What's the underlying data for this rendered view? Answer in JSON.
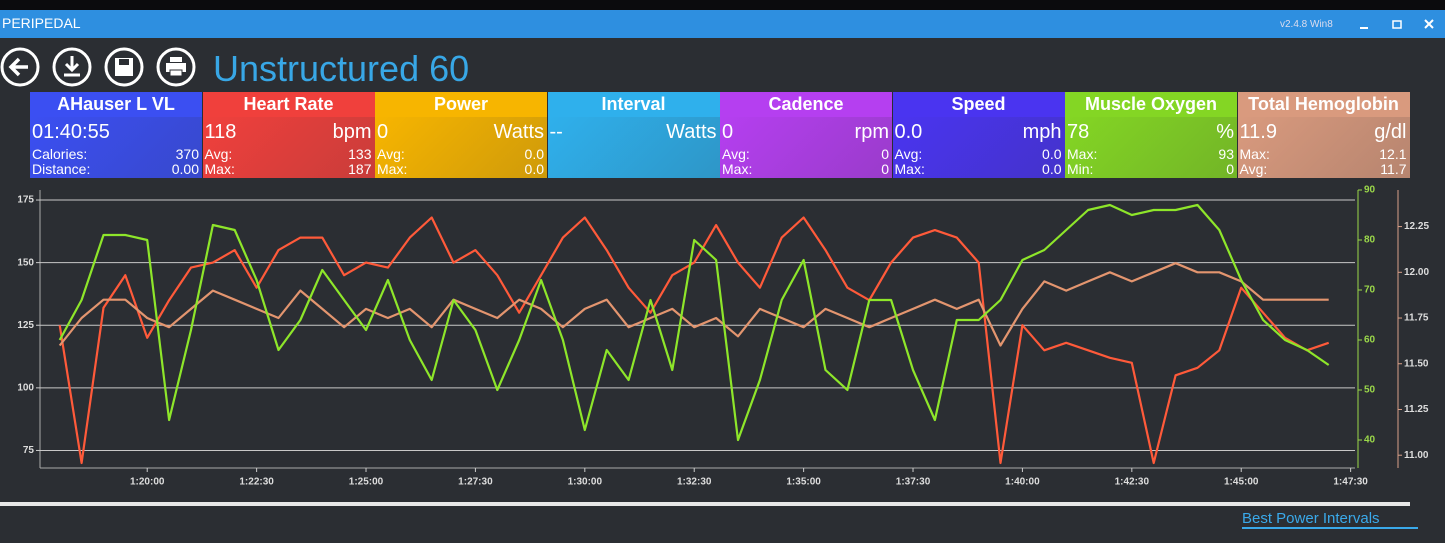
{
  "app": {
    "name": "PERIPEDAL",
    "version": "v2.4.8 Win8"
  },
  "header": {
    "title": "Unstructured 60"
  },
  "tiles": [
    {
      "title": "AHauser L VL",
      "value": "01:40:55",
      "rows": [
        [
          "Calories:",
          "370"
        ],
        [
          "Distance:",
          "0.00"
        ]
      ],
      "color": "#3b4ff2"
    },
    {
      "title": "Heart Rate",
      "value": "118",
      "unit": "bpm",
      "rows": [
        [
          "Avg:",
          "133"
        ],
        [
          "Max:",
          "187"
        ]
      ],
      "color": "#f0403c"
    },
    {
      "title": "Power",
      "value": "0",
      "unit": "Watts",
      "rows": [
        [
          "Avg:",
          "0.0"
        ],
        [
          "Max:",
          "0.0"
        ]
      ],
      "color": "#f7b500"
    },
    {
      "title": "Interval",
      "value": "--",
      "unit": "Watts",
      "rows": [],
      "color": "#2fb0ec"
    },
    {
      "title": "Cadence",
      "value": "0",
      "unit": "rpm",
      "rows": [
        [
          "Avg:",
          "0"
        ],
        [
          "Max:",
          "0"
        ]
      ],
      "color": "#b53ff0"
    },
    {
      "title": "Speed",
      "value": "0.0",
      "unit": "mph",
      "rows": [
        [
          "Avg:",
          "0.0"
        ],
        [
          "Max:",
          "0.0"
        ]
      ],
      "color": "#4a34f0"
    },
    {
      "title": "Muscle Oxygen",
      "value": "78",
      "unit": "%",
      "rows": [
        [
          "Max:",
          "93"
        ],
        [
          "Min:",
          "0"
        ]
      ],
      "color": "#84d624"
    },
    {
      "title": "Total Hemoglobin",
      "value": "11.9",
      "unit": "g/dl",
      "rows": [
        [
          "Max:",
          "12.1"
        ],
        [
          "Avg:",
          "11.7"
        ]
      ],
      "color": "#d99a7e"
    }
  ],
  "chart_data": {
    "type": "line",
    "x": [
      78,
      78.5,
      79,
      79.5,
      80,
      80.5,
      81,
      81.5,
      82,
      82.5,
      83,
      83.5,
      84,
      84.5,
      85,
      85.5,
      86,
      86.5,
      87,
      87.5,
      88,
      88.5,
      89,
      89.5,
      90,
      90.5,
      91,
      91.5,
      92,
      92.5,
      93,
      93.5,
      94,
      94.5,
      95,
      95.5,
      96,
      96.5,
      97,
      97.5,
      98,
      98.5,
      99,
      99.5,
      100,
      100.5,
      101,
      101.5,
      102,
      102.5,
      103,
      103.5,
      104,
      104.5,
      105,
      105.5,
      106,
      106.5,
      107
    ],
    "series": [
      {
        "color": "#ff5a3a",
        "axis": "y",
        "values": [
          125,
          70,
          132,
          145,
          120,
          135,
          148,
          150,
          155,
          140,
          155,
          160,
          160,
          145,
          150,
          148,
          160,
          168,
          150,
          155,
          145,
          130,
          145,
          160,
          168,
          155,
          140,
          130,
          145,
          150,
          165,
          150,
          140,
          160,
          168,
          155,
          140,
          135,
          150,
          160,
          163,
          160,
          150,
          70,
          125,
          115,
          118,
          115,
          112,
          110,
          70,
          105,
          108,
          115,
          140,
          130,
          120,
          115,
          118
        ]
      },
      {
        "color": "#e3956f",
        "axis": "y3",
        "values": [
          11.6,
          11.75,
          11.85,
          11.85,
          11.75,
          11.7,
          11.8,
          11.9,
          11.85,
          11.8,
          11.75,
          11.9,
          11.8,
          11.7,
          11.8,
          11.75,
          11.8,
          11.7,
          11.85,
          11.8,
          11.75,
          11.85,
          11.8,
          11.7,
          11.8,
          11.85,
          11.7,
          11.75,
          11.8,
          11.7,
          11.75,
          11.65,
          11.8,
          11.75,
          11.7,
          11.8,
          11.75,
          11.7,
          11.75,
          11.8,
          11.85,
          11.8,
          11.85,
          11.6,
          11.8,
          11.95,
          11.9,
          11.95,
          12.0,
          11.95,
          12.0,
          12.05,
          12.0,
          12.0,
          11.95,
          11.85,
          11.85,
          11.85,
          11.85
        ]
      },
      {
        "color": "#8ee62a",
        "axis": "y2",
        "values": [
          60,
          68,
          81,
          81,
          80,
          44,
          62,
          83,
          82,
          72,
          58,
          64,
          74,
          68,
          62,
          72,
          60,
          52,
          68,
          62,
          50,
          60,
          72,
          60,
          42,
          58,
          52,
          68,
          54,
          80,
          76,
          40,
          52,
          68,
          76,
          54,
          50,
          68,
          68,
          54,
          44,
          64,
          64,
          68,
          76,
          78,
          82,
          86,
          87,
          85,
          86,
          86,
          87,
          82,
          72,
          64,
          60,
          58,
          55
        ]
      }
    ],
    "xlim": [
      77.55,
      107.6
    ],
    "xticks": [
      {
        "value": 80,
        "label": "1:20:00"
      },
      {
        "value": 82.5,
        "label": "1:22:30"
      },
      {
        "value": 85,
        "label": "1:25:00"
      },
      {
        "value": 87.5,
        "label": "1:27:30"
      },
      {
        "value": 90,
        "label": "1:30:00"
      },
      {
        "value": 92.5,
        "label": "1:32:30"
      },
      {
        "value": 95,
        "label": "1:35:00"
      },
      {
        "value": 97.5,
        "label": "1:37:30"
      },
      {
        "value": 100,
        "label": "1:40:00"
      },
      {
        "value": 102.5,
        "label": "1:42:30"
      },
      {
        "value": 105,
        "label": "1:45:00"
      },
      {
        "value": 107.5,
        "label": "1:47:30"
      }
    ],
    "ylim": [
      68,
      179
    ],
    "yticks": [
      75,
      100,
      125,
      150,
      175
    ],
    "y2lim": [
      34.4,
      90
    ],
    "y2ticks": [
      40,
      50,
      60,
      70,
      80,
      90
    ],
    "y3lim": [
      10.93,
      12.45
    ],
    "y3ticks": [
      {
        "value": 11,
        "label": "11.00"
      },
      {
        "value": 11.25,
        "label": "11.25"
      },
      {
        "value": 11.5,
        "label": "11.50"
      },
      {
        "value": 11.75,
        "label": "11.75"
      },
      {
        "value": 12,
        "label": "12.00"
      },
      {
        "value": 12.25,
        "label": "12.25"
      }
    ],
    "grid": true
  },
  "footer": {
    "link": "Best Power Intervals"
  }
}
